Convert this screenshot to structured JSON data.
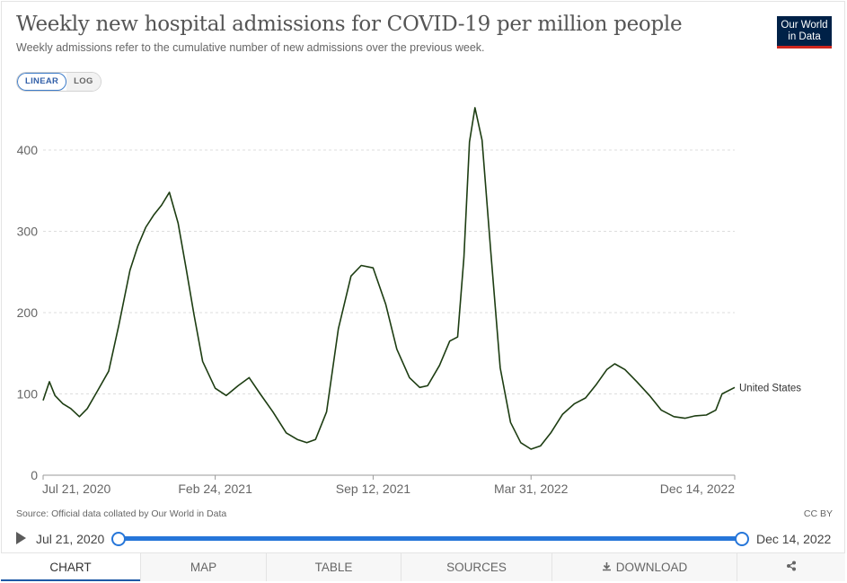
{
  "header": {
    "title": "Weekly new hospital admissions for COVID-19 per million people",
    "subtitle": "Weekly admissions refer to the cumulative number of new admissions over the previous week.",
    "logo_line1": "Our World",
    "logo_line2": "in Data"
  },
  "scale_toggle": {
    "linear_label": "LINEAR",
    "log_label": "LOG",
    "selected": "LINEAR"
  },
  "chart_data": {
    "type": "line",
    "title": "Weekly new hospital admissions for COVID-19 per million people",
    "subtitle": "Weekly admissions refer to the cumulative number of new admissions over the previous week.",
    "x_type": "date",
    "xlim": [
      "2020-07-21",
      "2022-12-14"
    ],
    "ylim": [
      0,
      400
    ],
    "y_ticks": [
      0,
      100,
      200,
      300,
      400
    ],
    "x_tick_labels": [
      "Jul 21, 2020",
      "Feb 24, 2021",
      "Sep 12, 2021",
      "Mar 31, 2022",
      "Dec 14, 2022"
    ],
    "grid": "horizontal dashed",
    "series": [
      {
        "name": "United States",
        "color": "#1d3d12",
        "points": [
          [
            "2020-07-21",
            92
          ],
          [
            "2020-07-29",
            115
          ],
          [
            "2020-08-05",
            98
          ],
          [
            "2020-08-15",
            88
          ],
          [
            "2020-08-25",
            82
          ],
          [
            "2020-09-05",
            72
          ],
          [
            "2020-09-15",
            82
          ],
          [
            "2020-09-28",
            104
          ],
          [
            "2020-10-12",
            128
          ],
          [
            "2020-10-25",
            185
          ],
          [
            "2020-11-08",
            252
          ],
          [
            "2020-11-18",
            282
          ],
          [
            "2020-11-28",
            305
          ],
          [
            "2020-12-08",
            320
          ],
          [
            "2020-12-18",
            332
          ],
          [
            "2020-12-28",
            348
          ],
          [
            "2021-01-08",
            310
          ],
          [
            "2021-01-18",
            255
          ],
          [
            "2021-01-28",
            198
          ],
          [
            "2021-02-08",
            140
          ],
          [
            "2021-02-24",
            107
          ],
          [
            "2021-03-10",
            98
          ],
          [
            "2021-03-25",
            110
          ],
          [
            "2021-04-08",
            120
          ],
          [
            "2021-04-22",
            100
          ],
          [
            "2021-05-08",
            78
          ],
          [
            "2021-05-25",
            52
          ],
          [
            "2021-06-08",
            44
          ],
          [
            "2021-06-20",
            40
          ],
          [
            "2021-07-01",
            44
          ],
          [
            "2021-07-15",
            78
          ],
          [
            "2021-07-30",
            180
          ],
          [
            "2021-08-15",
            245
          ],
          [
            "2021-08-28",
            258
          ],
          [
            "2021-09-12",
            255
          ],
          [
            "2021-09-28",
            210
          ],
          [
            "2021-10-12",
            155
          ],
          [
            "2021-10-28",
            120
          ],
          [
            "2021-11-10",
            108
          ],
          [
            "2021-11-20",
            110
          ],
          [
            "2021-12-05",
            135
          ],
          [
            "2021-12-18",
            165
          ],
          [
            "2021-12-28",
            170
          ],
          [
            "2022-01-05",
            268
          ],
          [
            "2022-01-12",
            410
          ],
          [
            "2022-01-19",
            452
          ],
          [
            "2022-01-28",
            412
          ],
          [
            "2022-02-08",
            275
          ],
          [
            "2022-02-20",
            132
          ],
          [
            "2022-03-05",
            65
          ],
          [
            "2022-03-18",
            40
          ],
          [
            "2022-03-31",
            32
          ],
          [
            "2022-04-12",
            36
          ],
          [
            "2022-04-25",
            52
          ],
          [
            "2022-05-10",
            75
          ],
          [
            "2022-05-25",
            88
          ],
          [
            "2022-06-08",
            95
          ],
          [
            "2022-06-22",
            112
          ],
          [
            "2022-07-05",
            130
          ],
          [
            "2022-07-15",
            137
          ],
          [
            "2022-07-28",
            130
          ],
          [
            "2022-08-12",
            115
          ],
          [
            "2022-08-28",
            98
          ],
          [
            "2022-09-12",
            80
          ],
          [
            "2022-09-28",
            72
          ],
          [
            "2022-10-12",
            70
          ],
          [
            "2022-10-25",
            73
          ],
          [
            "2022-11-08",
            74
          ],
          [
            "2022-11-20",
            80
          ],
          [
            "2022-11-28",
            100
          ],
          [
            "2022-12-14",
            108
          ]
        ]
      }
    ]
  },
  "footer": {
    "source": "Source: Official data collated by Our World in Data",
    "license": "CC BY"
  },
  "timeline": {
    "start_label": "Jul 21, 2020",
    "end_label": "Dec 14, 2022"
  },
  "tabs": [
    {
      "label": "CHART",
      "active": true
    },
    {
      "label": "MAP",
      "active": false
    },
    {
      "label": "TABLE",
      "active": false
    },
    {
      "label": "SOURCES",
      "active": false
    },
    {
      "label": "DOWNLOAD",
      "active": false
    }
  ],
  "icons": {
    "play": "play-icon",
    "download": "download-icon",
    "share": "share-icon"
  }
}
